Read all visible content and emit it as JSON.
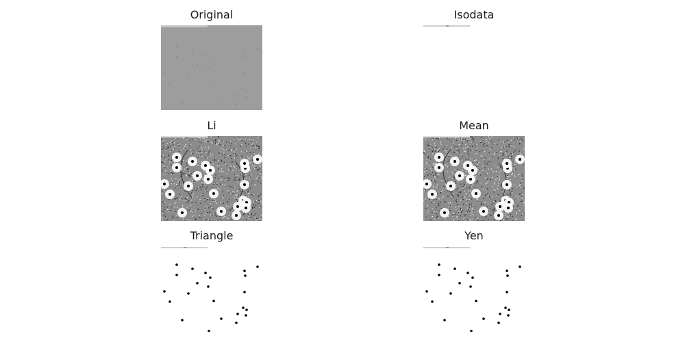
{
  "figure": {
    "panels": [
      {
        "id": "original",
        "title": "Original",
        "image": "grayscale micrograph"
      },
      {
        "id": "isodata",
        "title": "Isodata",
        "image": "nearly all-white thresholded image"
      },
      {
        "id": "li",
        "title": "Li",
        "image": "thresholded image with dark speckled texture and white halos"
      },
      {
        "id": "mean",
        "title": "Mean",
        "image": "thresholded image with dark speckled texture and white halos"
      },
      {
        "id": "triangle",
        "title": "Triangle",
        "image": "thresholded image with black dots"
      },
      {
        "id": "yen",
        "title": "Yen",
        "image": "thresholded image with black dots"
      }
    ]
  }
}
